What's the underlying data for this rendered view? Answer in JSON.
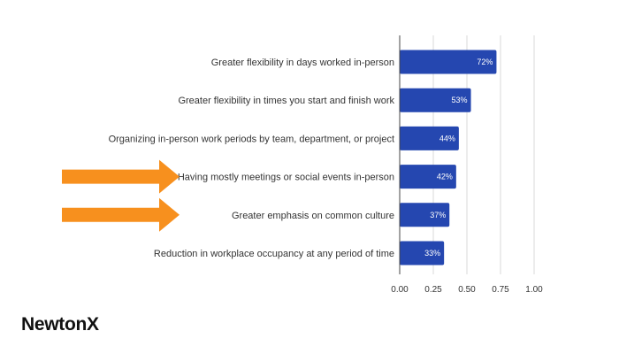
{
  "chart_data": {
    "type": "bar",
    "orientation": "horizontal",
    "categories": [
      "Greater flexibility in days worked in-person",
      "Greater flexibility in times you start and finish work",
      "Organizing in-person work periods by team, department, or project",
      "Having mostly meetings or social events in-person",
      "Greater emphasis on common culture",
      "Reduction in workplace occupancy at any period of time"
    ],
    "values": [
      0.72,
      0.53,
      0.44,
      0.42,
      0.37,
      0.33
    ],
    "data_labels": [
      "72%",
      "53%",
      "44%",
      "42%",
      "37%",
      "33%"
    ],
    "xlim": [
      0,
      1
    ],
    "x_ticks": [
      "0.00",
      "0.25",
      "0.50",
      "0.75",
      "1.00"
    ],
    "x_tick_values": [
      0,
      0.25,
      0.5,
      0.75,
      1.0
    ],
    "grid": "vertical",
    "title": "",
    "xlabel": "",
    "ylabel": "",
    "colors": {
      "bar": "#2547b0",
      "grid": "#d9d9d9",
      "axis": "#444444",
      "arrow": "#f7901e"
    },
    "highlighted_categories": [
      "Having mostly meetings or social events in-person",
      "Greater emphasis on common culture"
    ]
  },
  "brand": {
    "logo_text": "NewtonX"
  }
}
